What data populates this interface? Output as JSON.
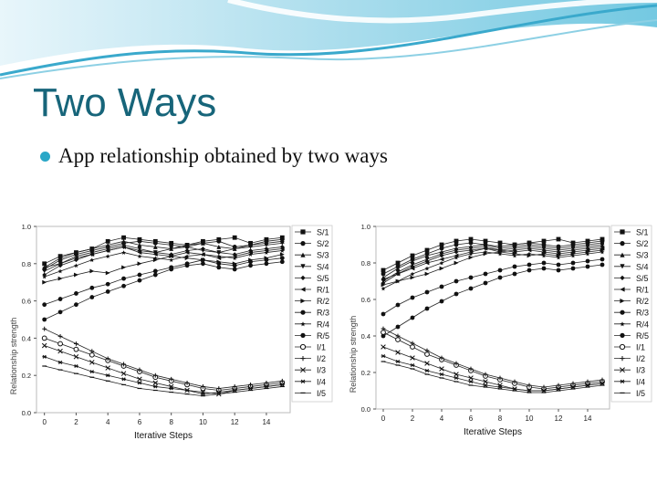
{
  "slide": {
    "title": "Two Ways",
    "bullet": "App relationship obtained by two ways",
    "accent_color": "#17657a",
    "bullet_color": "#2aa7c7"
  },
  "chart_data": [
    {
      "type": "line",
      "xlabel": "Iterative Steps",
      "ylabel": "Relationship strength",
      "xlim": [
        -0.5,
        15.5
      ],
      "ylim": [
        0,
        1.0
      ],
      "xticks": [
        0,
        2,
        4,
        6,
        8,
        10,
        12,
        14
      ],
      "yticks": [
        0.0,
        0.2,
        0.4,
        0.6,
        0.8,
        1.0
      ],
      "legend_position": "right",
      "x": [
        0,
        1,
        2,
        3,
        4,
        5,
        6,
        7,
        8,
        9,
        10,
        11,
        12,
        13,
        14,
        15
      ],
      "series": [
        {
          "name": "S/1",
          "marker": "square",
          "values": [
            0.8,
            0.84,
            0.86,
            0.88,
            0.92,
            0.94,
            0.93,
            0.92,
            0.91,
            0.9,
            0.92,
            0.93,
            0.94,
            0.91,
            0.93,
            0.94
          ]
        },
        {
          "name": "S/2",
          "marker": "circle",
          "values": [
            0.77,
            0.82,
            0.85,
            0.87,
            0.89,
            0.91,
            0.92,
            0.91,
            0.9,
            0.89,
            0.91,
            0.92,
            0.89,
            0.9,
            0.92,
            0.93
          ]
        },
        {
          "name": "S/3",
          "marker": "triangle-up",
          "values": [
            0.78,
            0.83,
            0.86,
            0.88,
            0.9,
            0.92,
            0.9,
            0.89,
            0.88,
            0.9,
            0.91,
            0.89,
            0.88,
            0.9,
            0.91,
            0.92
          ]
        },
        {
          "name": "S/4",
          "marker": "triangle-down",
          "values": [
            0.76,
            0.8,
            0.84,
            0.86,
            0.88,
            0.9,
            0.88,
            0.86,
            0.88,
            0.89,
            0.87,
            0.86,
            0.88,
            0.89,
            0.9,
            0.91
          ]
        },
        {
          "name": "S/5",
          "marker": "diamond",
          "values": [
            0.74,
            0.79,
            0.82,
            0.85,
            0.87,
            0.89,
            0.87,
            0.86,
            0.85,
            0.87,
            0.88,
            0.86,
            0.85,
            0.87,
            0.88,
            0.89
          ]
        },
        {
          "name": "R/1",
          "marker": "triangle-left",
          "values": [
            0.78,
            0.8,
            0.83,
            0.85,
            0.87,
            0.89,
            0.86,
            0.85,
            0.84,
            0.86,
            0.85,
            0.83,
            0.84,
            0.86,
            0.87,
            0.88
          ]
        },
        {
          "name": "R/2",
          "marker": "triangle-right",
          "values": [
            0.7,
            0.72,
            0.74,
            0.76,
            0.75,
            0.78,
            0.8,
            0.82,
            0.84,
            0.83,
            0.82,
            0.81,
            0.8,
            0.82,
            0.83,
            0.85
          ]
        },
        {
          "name": "R/3",
          "marker": "circle",
          "values": [
            0.58,
            0.61,
            0.64,
            0.67,
            0.69,
            0.72,
            0.74,
            0.76,
            0.78,
            0.8,
            0.82,
            0.8,
            0.79,
            0.81,
            0.82,
            0.83
          ]
        },
        {
          "name": "R/4",
          "marker": "star",
          "values": [
            0.73,
            0.76,
            0.79,
            0.82,
            0.84,
            0.86,
            0.84,
            0.83,
            0.82,
            0.84,
            0.85,
            0.84,
            0.83,
            0.85,
            0.86,
            0.87
          ]
        },
        {
          "name": "R/5",
          "marker": "circle",
          "values": [
            0.5,
            0.54,
            0.58,
            0.62,
            0.65,
            0.68,
            0.71,
            0.74,
            0.77,
            0.79,
            0.8,
            0.78,
            0.77,
            0.79,
            0.8,
            0.81
          ]
        },
        {
          "name": "I/1",
          "marker": "half-circle",
          "values": [
            0.4,
            0.37,
            0.34,
            0.31,
            0.28,
            0.25,
            0.22,
            0.19,
            0.17,
            0.15,
            0.13,
            0.12,
            0.13,
            0.14,
            0.15,
            0.16
          ]
        },
        {
          "name": "I/2",
          "marker": "plus",
          "values": [
            0.45,
            0.41,
            0.37,
            0.33,
            0.29,
            0.26,
            0.23,
            0.2,
            0.18,
            0.16,
            0.14,
            0.13,
            0.14,
            0.15,
            0.16,
            0.17
          ]
        },
        {
          "name": "I/3",
          "marker": "x",
          "values": [
            0.36,
            0.33,
            0.3,
            0.27,
            0.24,
            0.21,
            0.18,
            0.16,
            0.14,
            0.12,
            0.11,
            0.1,
            0.12,
            0.13,
            0.14,
            0.15
          ]
        },
        {
          "name": "I/4",
          "marker": "asterisk",
          "values": [
            0.3,
            0.27,
            0.25,
            0.22,
            0.2,
            0.18,
            0.16,
            0.14,
            0.13,
            0.12,
            0.1,
            0.11,
            0.12,
            0.13,
            0.14,
            0.15
          ]
        },
        {
          "name": "I/5",
          "marker": "dash",
          "values": [
            0.25,
            0.23,
            0.21,
            0.19,
            0.17,
            0.15,
            0.13,
            0.12,
            0.11,
            0.1,
            0.09,
            0.1,
            0.11,
            0.12,
            0.13,
            0.14
          ]
        }
      ]
    },
    {
      "type": "line",
      "xlabel": "Iterative Steps",
      "ylabel": "Relationship strength",
      "xlim": [
        -0.5,
        15.5
      ],
      "ylim": [
        0,
        1.0
      ],
      "xticks": [
        0,
        2,
        4,
        6,
        8,
        10,
        12,
        14
      ],
      "yticks": [
        0.0,
        0.2,
        0.4,
        0.6,
        0.8,
        1.0
      ],
      "legend_position": "right",
      "x": [
        0,
        1,
        2,
        3,
        4,
        5,
        6,
        7,
        8,
        9,
        10,
        11,
        12,
        13,
        14,
        15
      ],
      "series": [
        {
          "name": "S/1",
          "marker": "square",
          "values": [
            0.76,
            0.8,
            0.84,
            0.87,
            0.9,
            0.92,
            0.93,
            0.92,
            0.91,
            0.9,
            0.91,
            0.92,
            0.93,
            0.91,
            0.92,
            0.93
          ]
        },
        {
          "name": "S/2",
          "marker": "circle",
          "values": [
            0.74,
            0.78,
            0.82,
            0.85,
            0.88,
            0.9,
            0.91,
            0.9,
            0.89,
            0.9,
            0.91,
            0.9,
            0.89,
            0.9,
            0.91,
            0.92
          ]
        },
        {
          "name": "S/3",
          "marker": "triangle-up",
          "values": [
            0.72,
            0.77,
            0.81,
            0.84,
            0.86,
            0.88,
            0.89,
            0.9,
            0.88,
            0.89,
            0.9,
            0.89,
            0.88,
            0.89,
            0.9,
            0.91
          ]
        },
        {
          "name": "S/4",
          "marker": "triangle-down",
          "values": [
            0.7,
            0.75,
            0.79,
            0.82,
            0.85,
            0.87,
            0.88,
            0.89,
            0.87,
            0.88,
            0.89,
            0.88,
            0.87,
            0.88,
            0.89,
            0.9
          ]
        },
        {
          "name": "S/5",
          "marker": "diamond",
          "values": [
            0.69,
            0.74,
            0.78,
            0.81,
            0.84,
            0.86,
            0.87,
            0.88,
            0.86,
            0.87,
            0.88,
            0.87,
            0.86,
            0.87,
            0.88,
            0.89
          ]
        },
        {
          "name": "R/1",
          "marker": "triangle-left",
          "values": [
            0.71,
            0.74,
            0.77,
            0.8,
            0.82,
            0.84,
            0.86,
            0.88,
            0.87,
            0.86,
            0.87,
            0.86,
            0.85,
            0.86,
            0.87,
            0.88
          ]
        },
        {
          "name": "R/2",
          "marker": "triangle-right",
          "values": [
            0.68,
            0.7,
            0.72,
            0.74,
            0.77,
            0.8,
            0.83,
            0.85,
            0.86,
            0.85,
            0.84,
            0.85,
            0.84,
            0.85,
            0.86,
            0.87
          ]
        },
        {
          "name": "R/3",
          "marker": "circle",
          "values": [
            0.52,
            0.57,
            0.61,
            0.64,
            0.67,
            0.7,
            0.72,
            0.74,
            0.76,
            0.78,
            0.79,
            0.8,
            0.79,
            0.8,
            0.81,
            0.82
          ]
        },
        {
          "name": "R/4",
          "marker": "star",
          "values": [
            0.66,
            0.7,
            0.74,
            0.77,
            0.8,
            0.83,
            0.85,
            0.86,
            0.85,
            0.84,
            0.85,
            0.84,
            0.83,
            0.84,
            0.85,
            0.86
          ]
        },
        {
          "name": "R/5",
          "marker": "circle",
          "values": [
            0.4,
            0.45,
            0.5,
            0.55,
            0.59,
            0.63,
            0.66,
            0.69,
            0.72,
            0.74,
            0.76,
            0.77,
            0.76,
            0.77,
            0.78,
            0.79
          ]
        },
        {
          "name": "I/1",
          "marker": "half-circle",
          "values": [
            0.42,
            0.38,
            0.34,
            0.3,
            0.27,
            0.24,
            0.21,
            0.18,
            0.16,
            0.14,
            0.12,
            0.11,
            0.12,
            0.13,
            0.14,
            0.15
          ]
        },
        {
          "name": "I/2",
          "marker": "plus",
          "values": [
            0.44,
            0.4,
            0.36,
            0.32,
            0.28,
            0.25,
            0.22,
            0.19,
            0.17,
            0.15,
            0.13,
            0.12,
            0.13,
            0.14,
            0.15,
            0.16
          ]
        },
        {
          "name": "I/3",
          "marker": "x",
          "values": [
            0.34,
            0.31,
            0.28,
            0.25,
            0.22,
            0.19,
            0.17,
            0.15,
            0.13,
            0.11,
            0.1,
            0.1,
            0.11,
            0.12,
            0.13,
            0.14
          ]
        },
        {
          "name": "I/4",
          "marker": "asterisk",
          "values": [
            0.29,
            0.26,
            0.24,
            0.21,
            0.19,
            0.17,
            0.15,
            0.13,
            0.12,
            0.11,
            0.1,
            0.1,
            0.11,
            0.12,
            0.13,
            0.14
          ]
        },
        {
          "name": "I/5",
          "marker": "dash",
          "values": [
            0.26,
            0.24,
            0.22,
            0.19,
            0.17,
            0.15,
            0.13,
            0.12,
            0.11,
            0.1,
            0.09,
            0.09,
            0.1,
            0.11,
            0.12,
            0.13
          ]
        }
      ]
    }
  ]
}
